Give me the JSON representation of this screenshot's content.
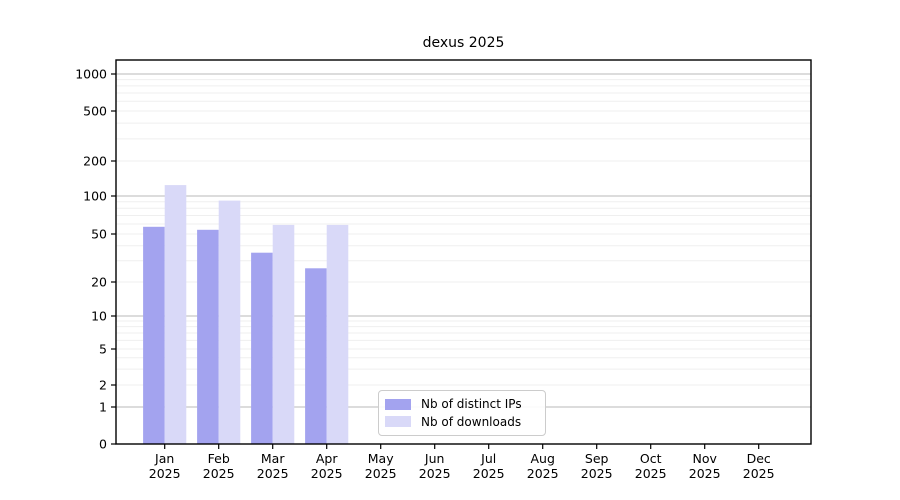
{
  "chart_data": {
    "type": "bar",
    "title": "dexus 2025",
    "categories": [
      "Jan 2025",
      "Feb 2025",
      "Mar 2025",
      "Apr 2025",
      "May 2025",
      "Jun 2025",
      "Jul 2025",
      "Aug 2025",
      "Sep 2025",
      "Oct 2025",
      "Nov 2025",
      "Dec 2025"
    ],
    "series": [
      {
        "name": "Nb of distinct IPs",
        "color": "#a3a3ef",
        "values": [
          57,
          54,
          35,
          26,
          0,
          0,
          0,
          0,
          0,
          0,
          0,
          0
        ]
      },
      {
        "name": "Nb of downloads",
        "color": "#d9d9f8",
        "values": [
          124,
          92,
          59,
          59,
          0,
          0,
          0,
          0,
          0,
          0,
          0,
          0
        ]
      }
    ],
    "xlabel": "",
    "ylabel": "",
    "yscale": "log-like (asinh), linear segment between 0 and 1",
    "yticks": [
      0,
      1,
      2,
      5,
      10,
      20,
      50,
      100,
      200,
      500,
      1000
    ],
    "ylim": [
      0,
      1300
    ],
    "grid": "horizontal, faint minor lines at 2-9 per decade, darker lines at 1/10/100/1000",
    "legend_position": "lower center",
    "colors": {
      "grid_major": "#c6c6c6",
      "grid_minor": "#efefef",
      "axes": "#000000"
    }
  }
}
